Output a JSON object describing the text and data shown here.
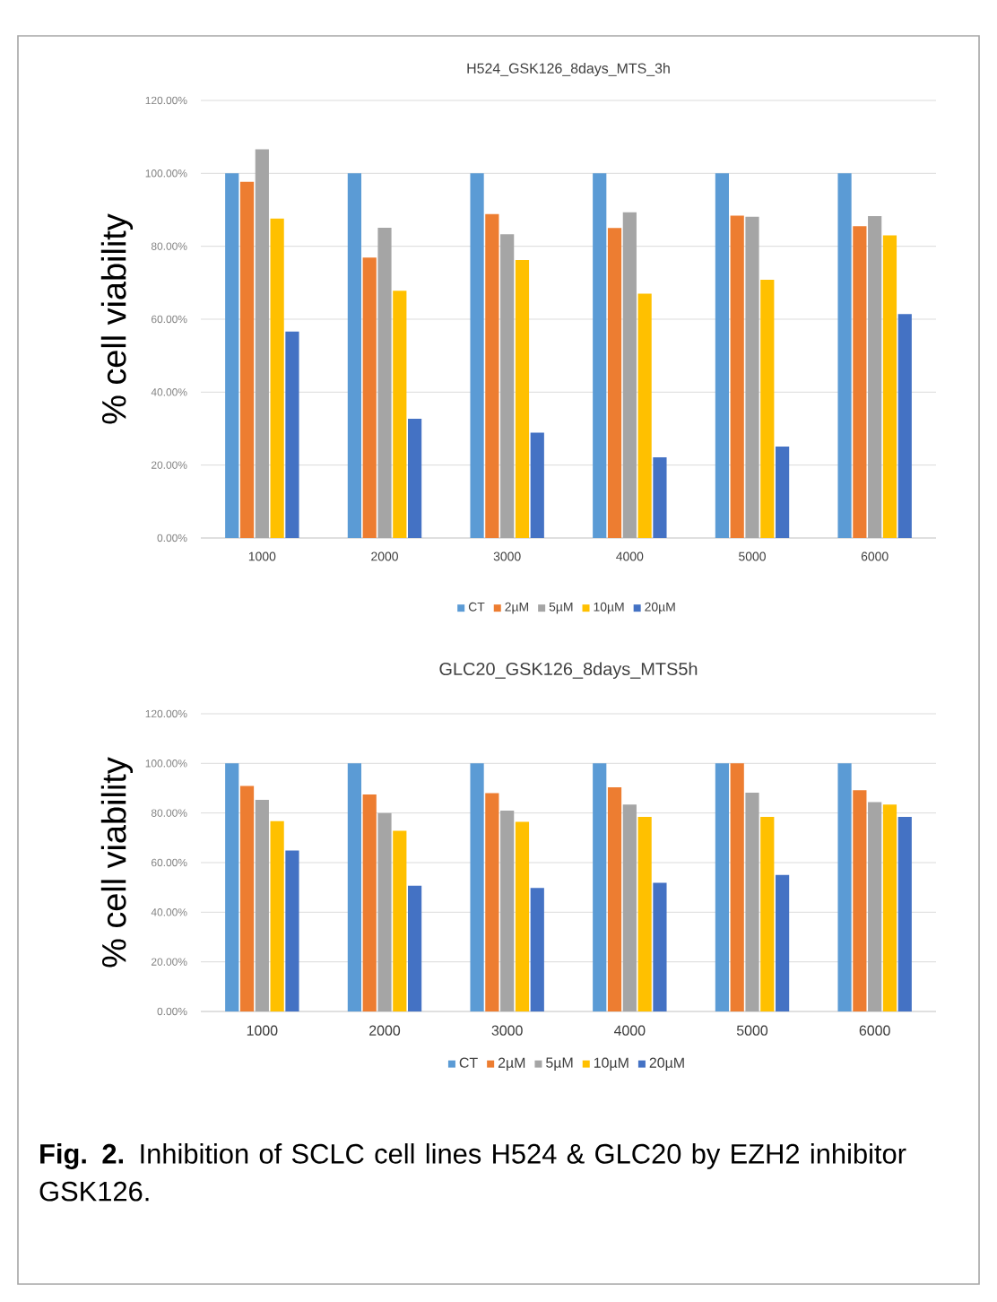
{
  "chart_data": [
    {
      "type": "bar",
      "title": "H524_GSK126_8days_MTS_3h",
      "ylabel": "% cell viability",
      "categories": [
        "1000",
        "2000",
        "3000",
        "4000",
        "5000",
        "6000"
      ],
      "series": [
        {
          "name": "CT",
          "color": "#5b9bd5",
          "values": [
            100,
            100,
            100,
            100,
            100,
            100
          ]
        },
        {
          "name": "2µM",
          "color": "#ed7d31",
          "values": [
            97.7,
            76.9,
            88.8,
            85.0,
            88.4,
            85.5
          ]
        },
        {
          "name": "5µM",
          "color": "#a5a5a5",
          "values": [
            106.6,
            85.1,
            83.3,
            89.3,
            88.1,
            88.3
          ]
        },
        {
          "name": "10µM",
          "color": "#ffc000",
          "values": [
            87.6,
            67.8,
            76.2,
            67.0,
            70.8,
            83.0
          ]
        },
        {
          "name": "20µM",
          "color": "#4472c4",
          "values": [
            56.6,
            32.7,
            28.9,
            22.1,
            25.1,
            61.4
          ]
        }
      ],
      "ylim": [
        0,
        120
      ],
      "yticks": [
        {
          "value": 0,
          "label": "0.00%"
        },
        {
          "value": 20,
          "label": "20.00%"
        },
        {
          "value": 40,
          "label": "40.00%"
        },
        {
          "value": 60,
          "label": "60.00%"
        },
        {
          "value": 80,
          "label": "80.00%"
        },
        {
          "value": 100,
          "label": "100.00%"
        },
        {
          "value": 120,
          "label": "120.00%"
        }
      ],
      "grid": "y",
      "legend": "bottom"
    },
    {
      "type": "bar",
      "title": "GLC20_GSK126_8days_MTS5h",
      "ylabel": "% cell viability",
      "categories": [
        "1000",
        "2000",
        "3000",
        "4000",
        "5000",
        "6000"
      ],
      "series": [
        {
          "name": "CT",
          "color": "#5b9bd5",
          "values": [
            100,
            100,
            100,
            100,
            100,
            100
          ]
        },
        {
          "name": "2µM",
          "color": "#ed7d31",
          "values": [
            90.9,
            87.5,
            88.0,
            90.4,
            100,
            89.2
          ]
        },
        {
          "name": "5µM",
          "color": "#a5a5a5",
          "values": [
            85.3,
            80.0,
            81.0,
            83.4,
            88.2,
            84.4
          ]
        },
        {
          "name": "10µM",
          "color": "#ffc000",
          "values": [
            76.7,
            72.8,
            76.4,
            78.4,
            78.4,
            83.4
          ]
        },
        {
          "name": "20µM",
          "color": "#4472c4",
          "values": [
            64.9,
            50.7,
            49.8,
            51.9,
            55.0,
            78.4
          ]
        }
      ],
      "ylim": [
        0,
        120
      ],
      "yticks": [
        {
          "value": 0,
          "label": "0.00%"
        },
        {
          "value": 20,
          "label": "20.00%"
        },
        {
          "value": 40,
          "label": "40.00%"
        },
        {
          "value": 60,
          "label": "60.00%"
        },
        {
          "value": 80,
          "label": "80.00%"
        },
        {
          "value": 100,
          "label": "100.00%"
        },
        {
          "value": 120,
          "label": "120.00%"
        }
      ],
      "grid": "y",
      "legend": "bottom",
      "annotations": [
        "**Fig. 2.** Inhibition of SCLC cell lines H524 & GLC20 by EZH2 inhibitor GSK126."
      ]
    }
  ]
}
